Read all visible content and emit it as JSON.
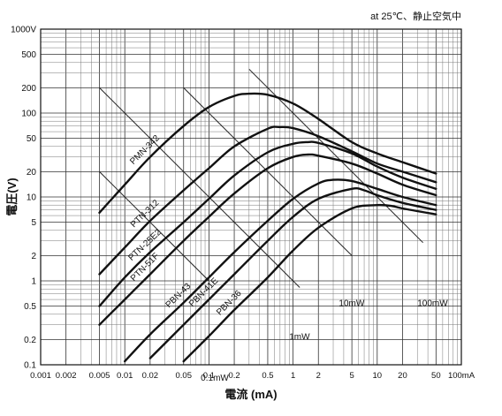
{
  "chart_data": {
    "type": "line",
    "condition": "at 25℃、静止空気中",
    "xlabel": "電流 (mA)",
    "ylabel": "電圧(V)",
    "x_scale": "log",
    "y_scale": "log",
    "xlim": [
      0.001,
      100
    ],
    "ylim": [
      0.1,
      1000
    ],
    "grid": true,
    "x_ticks": [
      {
        "v": 0.001,
        "label": "0.001"
      },
      {
        "v": 0.002,
        "label": "0.002"
      },
      {
        "v": 0.005,
        "label": "0.005"
      },
      {
        "v": 0.01,
        "label": "0.01"
      },
      {
        "v": 0.02,
        "label": "0.02"
      },
      {
        "v": 0.05,
        "label": "0.05"
      },
      {
        "v": 0.1,
        "label": "0.1"
      },
      {
        "v": 0.2,
        "label": "0.2"
      },
      {
        "v": 0.5,
        "label": "0.5"
      },
      {
        "v": 1,
        "label": "1"
      },
      {
        "v": 2,
        "label": "2"
      },
      {
        "v": 5,
        "label": "5"
      },
      {
        "v": 10,
        "label": "10"
      },
      {
        "v": 20,
        "label": "20"
      },
      {
        "v": 50,
        "label": "50"
      },
      {
        "v": 100,
        "label": "100mA"
      }
    ],
    "y_ticks": [
      {
        "v": 0.1,
        "label": "0.1"
      },
      {
        "v": 0.2,
        "label": "0.2"
      },
      {
        "v": 0.5,
        "label": "0.5"
      },
      {
        "v": 1,
        "label": "1"
      },
      {
        "v": 2,
        "label": "2"
      },
      {
        "v": 5,
        "label": "5"
      },
      {
        "v": 10,
        "label": "10"
      },
      {
        "v": 20,
        "label": "20"
      },
      {
        "v": 50,
        "label": "50"
      },
      {
        "v": 100,
        "label": "100"
      },
      {
        "v": 200,
        "label": "200"
      },
      {
        "v": 500,
        "label": "500"
      },
      {
        "v": 1000,
        "label": "1000V"
      }
    ],
    "series": [
      {
        "name": "PMN-342",
        "points": [
          [
            0.005,
            6.5
          ],
          [
            0.01,
            14
          ],
          [
            0.02,
            30
          ],
          [
            0.05,
            70
          ],
          [
            0.1,
            118
          ],
          [
            0.2,
            160
          ],
          [
            0.3,
            170
          ],
          [
            0.5,
            165
          ],
          [
            1,
            130
          ],
          [
            2,
            85
          ],
          [
            5,
            45
          ],
          [
            10,
            33
          ],
          [
            20,
            26
          ],
          [
            50,
            19
          ]
        ]
      },
      {
        "name": "PTN-312",
        "points": [
          [
            0.005,
            1.2
          ],
          [
            0.01,
            2.5
          ],
          [
            0.02,
            5.2
          ],
          [
            0.05,
            12
          ],
          [
            0.1,
            22
          ],
          [
            0.2,
            40
          ],
          [
            0.5,
            65
          ],
          [
            0.7,
            68
          ],
          [
            1,
            66
          ],
          [
            2,
            53
          ],
          [
            5,
            35
          ],
          [
            10,
            25
          ],
          [
            20,
            20
          ],
          [
            50,
            15
          ]
        ]
      },
      {
        "name": "PTN-25E2",
        "points": [
          [
            0.005,
            0.5
          ],
          [
            0.01,
            1.1
          ],
          [
            0.02,
            2.2
          ],
          [
            0.05,
            5
          ],
          [
            0.1,
            9.5
          ],
          [
            0.2,
            18
          ],
          [
            0.5,
            34
          ],
          [
            1,
            43
          ],
          [
            1.5,
            45
          ],
          [
            2,
            44
          ],
          [
            5,
            33
          ],
          [
            10,
            23
          ],
          [
            20,
            17
          ],
          [
            50,
            12.5
          ]
        ]
      },
      {
        "name": "PTN-51F",
        "points": [
          [
            0.005,
            0.3
          ],
          [
            0.01,
            0.6
          ],
          [
            0.02,
            1.2
          ],
          [
            0.05,
            3
          ],
          [
            0.1,
            5.8
          ],
          [
            0.2,
            11
          ],
          [
            0.5,
            22
          ],
          [
            1,
            30
          ],
          [
            1.5,
            32
          ],
          [
            2,
            31
          ],
          [
            5,
            25
          ],
          [
            10,
            19
          ],
          [
            20,
            14
          ],
          [
            50,
            10.5
          ]
        ]
      },
      {
        "name": "PBN-43",
        "points": [
          [
            0.01,
            0.11
          ],
          [
            0.02,
            0.23
          ],
          [
            0.05,
            0.55
          ],
          [
            0.1,
            1.1
          ],
          [
            0.2,
            2.2
          ],
          [
            0.5,
            5.2
          ],
          [
            1,
            9.5
          ],
          [
            2,
            14.5
          ],
          [
            3,
            16
          ],
          [
            5,
            15.5
          ],
          [
            10,
            12.5
          ],
          [
            20,
            10
          ],
          [
            50,
            8
          ]
        ]
      },
      {
        "name": "PBN-41E",
        "points": [
          [
            0.02,
            0.12
          ],
          [
            0.05,
            0.3
          ],
          [
            0.1,
            0.6
          ],
          [
            0.2,
            1.2
          ],
          [
            0.5,
            3
          ],
          [
            1,
            5.8
          ],
          [
            2,
            9.5
          ],
          [
            5,
            12.5
          ],
          [
            7,
            12
          ],
          [
            10,
            10.5
          ],
          [
            20,
            8.5
          ],
          [
            50,
            7
          ]
        ]
      },
      {
        "name": "PBN-36",
        "points": [
          [
            0.05,
            0.11
          ],
          [
            0.1,
            0.22
          ],
          [
            0.2,
            0.45
          ],
          [
            0.5,
            1.1
          ],
          [
            1,
            2.3
          ],
          [
            2,
            4.3
          ],
          [
            5,
            7.3
          ],
          [
            10,
            8
          ],
          [
            15,
            7.8
          ],
          [
            20,
            7.3
          ],
          [
            50,
            6.2
          ]
        ]
      }
    ],
    "power_lines": [
      {
        "label": "100mW",
        "mw": 100
      },
      {
        "label": "10mW",
        "mw": 10
      },
      {
        "label": "1mW",
        "mw": 1
      },
      {
        "label": "0.1mW",
        "mw": 0.1
      }
    ]
  }
}
